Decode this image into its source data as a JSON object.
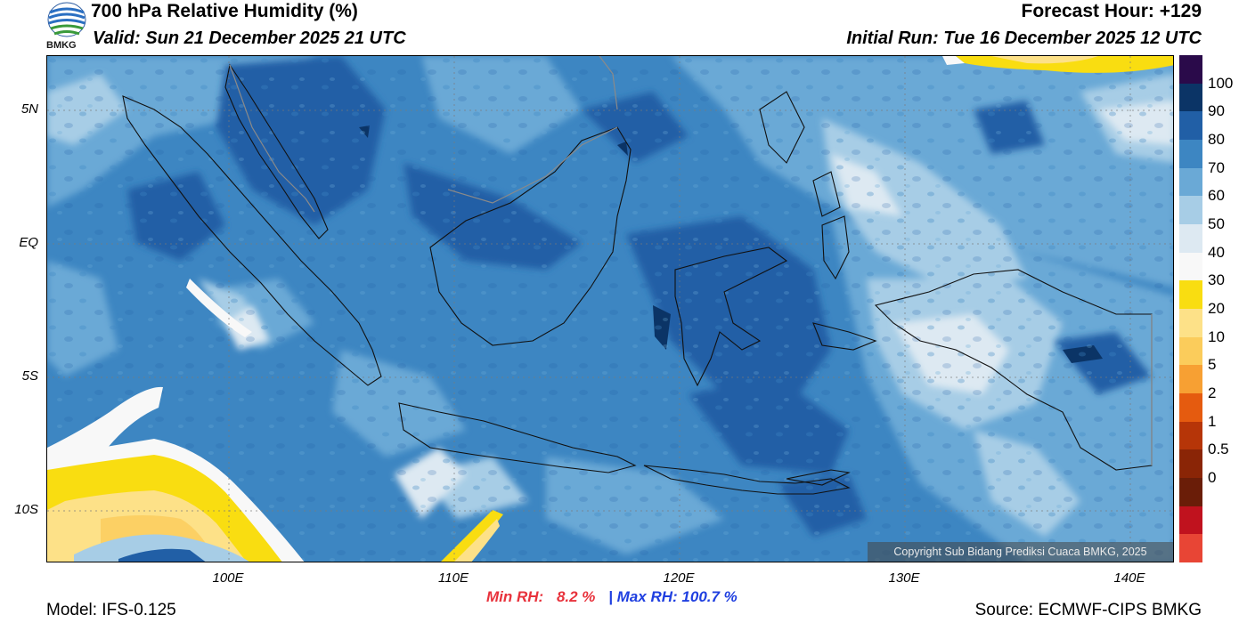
{
  "header": {
    "title": "700 hPa Relative Humidity (%)",
    "valid": "Valid: Sun 21 December 2025 21 UTC",
    "forecast_hour": "Forecast Hour: +129",
    "initial_run": "Initial Run: Tue 16 December 2025 12 UTC"
  },
  "logo": {
    "text": "BMKG"
  },
  "axes": {
    "lat_labels": [
      "5N",
      "EQ",
      "5S",
      "10S"
    ],
    "lon_labels": [
      "100E",
      "110E",
      "120E",
      "130E",
      "140E"
    ]
  },
  "colorbar": {
    "labels": [
      "100",
      "90",
      "80",
      "70",
      "60",
      "50",
      "40",
      "30",
      "20",
      "10",
      "5",
      "2",
      "1",
      "0.5",
      "0"
    ],
    "colors": [
      "#2a0a4a",
      "#0b3466",
      "#215fa6",
      "#3d86c2",
      "#6aa9d6",
      "#a7cde6",
      "#dde9f2",
      "#f8f8f8",
      "#f9dd11",
      "#fde188",
      "#fbcc5b",
      "#f7a033",
      "#e55b0f",
      "#b63508",
      "#8a2506",
      "#6a1d08",
      "#c0121e",
      "#e84535"
    ]
  },
  "copyright": "Copyright Sub Bidang Prediksi Cuaca BMKG, 2025",
  "stats": {
    "min_label": "Min RH:",
    "min_value": "8.2 %",
    "separator": "|",
    "max_label": "Max RH:",
    "max_value": "100.7 %"
  },
  "footer": {
    "model": "Model: IFS-0.125",
    "source": "Source: ECMWF-CIPS BMKG"
  }
}
